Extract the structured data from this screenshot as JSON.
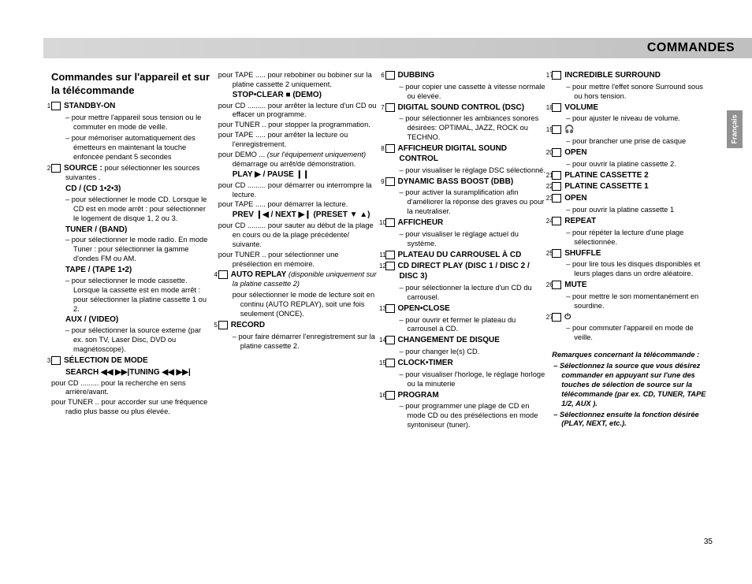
{
  "header": {
    "title": "COMMANDES"
  },
  "sideTab": "Français",
  "pageNumber": "35",
  "col1": {
    "mainHeading": "Commandes sur l'appareil et sur la télécommande",
    "n1": "1",
    "t1": "STANDBY-ON",
    "d1a": "pour mettre l'appareil sous tension ou le commuter en mode de veille.",
    "d1b": "pour mémoriser automatiquement des émetteurs en maintenant la touche enfoncée pendant 5 secondes",
    "n2": "2",
    "t2": "SOURCE :",
    "t2after": " pour sélectionner les sources suivantes .",
    "sub_cd": "CD / (CD 1•2•3)",
    "d2a": "pour sélectionner le mode CD. Lorsque le CD est en mode arrêt : pour sélectionner le logement de disque 1, 2 ou 3.",
    "sub_tuner": "TUNER / (BAND)",
    "d2b": "pour sélectionner le mode radio. En mode Tuner : pour sélectionner la gamme d'ondes FM ou AM.",
    "sub_tape": "TAPE / (TAPE 1•2)",
    "d2c": "pour sélectionner le mode cassette. Lorsque la cassette est en mode arrêt : pour sélectionner la platine cassette 1 ou 2.",
    "sub_aux": "AUX / (VIDEO)",
    "d2d": "pour sélectionner la source externe (par ex. son TV, Laser Disc, DVD ou magnétoscope).",
    "n3": "3",
    "t3": "SÉLECTION DE MODE",
    "sub_search": "SEARCH ◀◀  ▶▶|TUNING ◀◀  ▶▶|",
    "l_cd": "pour CD",
    "v_cd": "pour la recherche en sens arrière/avant.",
    "l_tuner": "pour TUNER",
    "v_tuner": "pour accorder sur une fréquence radio plus basse ou plus élevée."
  },
  "col2": {
    "l_tape1": "pour TAPE",
    "v_tape1": "pour rebobiner ou bobiner sur la platine cassette 2 uniquement.",
    "sub_stop": "STOP•CLEAR ■  (DEMO)",
    "l_cd2": "pour CD",
    "v_cd2": "pour arrêter la lecture d'un CD ou effacer un programme.",
    "l_tuner2": "pour TUNER",
    "v_tuner2": "pour stopper la programmation.",
    "l_tape2": "pour TAPE",
    "v_tape2": "pour arrêter la lecture ou l'enregistrement.",
    "l_demo": "pour DEMO",
    "v_demo_i": "(sur l'équipement uniquement)",
    "v_demo": " démarrage ou arrêt/de démonstration.",
    "sub_play": "PLAY ▶ / PAUSE ❙❙",
    "l_cd3": "pour CD",
    "v_cd3": "pour démarrer ou interrompre la lecture.",
    "l_tape3": "pour TAPE",
    "v_tape3": "pour démarrer la lecture.",
    "sub_prev": "PREV ❙◀ / NEXT ▶❙ (PRESET ▼ ▲)",
    "l_cd4": "pour CD",
    "v_cd4": "pour sauter au début de la plage en cours ou de la plage précédente/ suivante.",
    "l_tuner4": "pour TUNER",
    "v_tuner4": "pour sélectionner une présélection en mémoire.",
    "n4": "4",
    "t4": "AUTO REPLAY",
    "t4i": " (disponible uniquement sur la platine cassette 2)",
    "d4": "pour sélectionner le mode de lecture soit en continu (AUTO REPLAY), soit une fois seulement (ONCE).",
    "n5": "5",
    "t5": "RECORD",
    "d5": "pour faire démarrer l'enregistrement sur la platine cassette 2."
  },
  "col3": {
    "n6": "6",
    "t6": "DUBBING",
    "d6": "pour copier une cassette à vitesse normale ou élevée.",
    "n7": "7",
    "t7": "DIGITAL SOUND CONTROL (DSC)",
    "d7": "pour sélectionner les ambiances sonores désirées: OPTIMAL, JAZZ, ROCK ou TECHNO.",
    "n8": "8",
    "t8": "AFFICHEUR DIGITAL SOUND CONTROL",
    "d8": "pour visualiser le réglage DSC sélectionné.",
    "n9": "9",
    "t9": "DYNAMIC BASS BOOST (DBB)",
    "d9": "pour activer la suramplification afin d'améliorer la réponse des graves ou pour la neutraliser.",
    "n10": "10",
    "t10": "AFFICHEUR",
    "d10": "pour visualiser le réglage actuel du système.",
    "n11": "11",
    "t11": "PLATEAU DU CARROUSEL À CD",
    "n12": "12",
    "t12": "CD DIRECT PLAY (DISC 1 / DISC 2 / DISC 3)",
    "d12": "pour sélectionner la lecture d'un CD du carrousel.",
    "n13": "13",
    "t13": "OPEN•CLOSE",
    "d13": "pour ouvrir et fermer le plateau du carrousel à CD.",
    "n14": "14",
    "t14": "CHANGEMENT DE DISQUE",
    "d14": "pour changer le(s) CD.",
    "n15": "15",
    "t15": "CLOCK•TIMER",
    "d15": "pour visualiser l'horloge, le réglage horloge ou la minuterie",
    "n16": "16",
    "t16": "PROGRAM",
    "d16": "pour programmer une plage de CD en mode CD ou des présélections en mode syntoniseur (tuner)."
  },
  "col4": {
    "n17": "17",
    "t17": "INCREDIBLE SURROUND",
    "d17": "pour mettre l'effet sonore Surround sous ou hors tension.",
    "n18": "18",
    "t18": "VOLUME",
    "d18": "pour ajuster le niveau de volume.",
    "n19": "19",
    "t19": "🎧",
    "d19": "pour brancher une prise de casque",
    "n20": "20",
    "t20": "OPEN",
    "d20": "pour ouvrir la platine cassette 2.",
    "n21": "21",
    "t21": "PLATINE CASSETTE 2",
    "n22": "22",
    "t22": "PLATINE CASSETTE 1",
    "n23": "23",
    "t23": "OPEN",
    "d23": "pour ouvrir la platine cassette 1",
    "n24": "24",
    "t24": "REPEAT",
    "d24": "pour répéter la lecture d'une plage sélectionnée.",
    "n25": "25",
    "t25": "SHUFFLE",
    "d25": "pour lire tous les disques disponibles et leurs plages dans un ordre aléatoire.",
    "n26": "26",
    "t26": "MUTE",
    "d26": "pour mettre le son momentanément en sourdine.",
    "n27": "27",
    "t27": "⏻",
    "d27": "pour commuter l'appareil en mode de veille.",
    "rem_title": "Remarques concernant la télécommande :",
    "rem1": "Sélectionnez la source que vous désirez commander en appuyant sur l'une des touches de sélection de source sur la télécommande (par ex. CD, TUNER, TAPE 1/2, AUX ).",
    "rem2": "Sélectionnez ensuite la fonction désirée (PLAY, NEXT, etc.)."
  }
}
